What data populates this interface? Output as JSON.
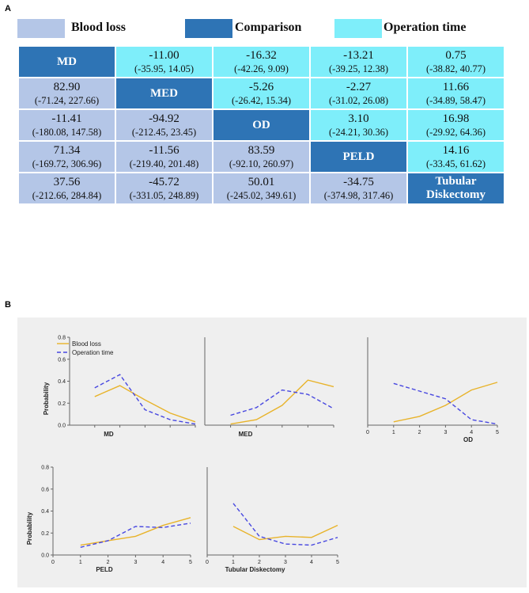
{
  "panel_a": {
    "label": "A",
    "legend": [
      {
        "label": "Blood loss",
        "color": "#b4c6e7"
      },
      {
        "label": "Comparison",
        "color": "#2e74b5"
      },
      {
        "label": "Operation time",
        "color": "#7eeefa"
      }
    ],
    "treatments": [
      "MD",
      "MED",
      "OD",
      "PELD",
      "Tubular Diskectomy"
    ],
    "diagonal_labels": [
      "MD",
      "MED",
      "OD",
      "PELD",
      "Tubular\nDiskectomy"
    ],
    "rows": [
      [
        {
          "type": "diag"
        },
        {
          "type": "op",
          "value": "-11.00",
          "ci": "(-35.95, 14.05)"
        },
        {
          "type": "op",
          "value": "-16.32",
          "ci": "(-42.26, 9.09)"
        },
        {
          "type": "op",
          "value": "-13.21",
          "ci": "(-39.25, 12.38)"
        },
        {
          "type": "op",
          "value": "0.75",
          "ci": "(-38.82, 40.77)"
        }
      ],
      [
        {
          "type": "blood",
          "value": "82.90",
          "ci": "(-71.24, 227.66)"
        },
        {
          "type": "diag"
        },
        {
          "type": "op",
          "value": "-5.26",
          "ci": "(-26.42, 15.34)"
        },
        {
          "type": "op",
          "value": "-2.27",
          "ci": "(-31.02, 26.08)"
        },
        {
          "type": "op",
          "value": "11.66",
          "ci": "(-34.89, 58.47)"
        }
      ],
      [
        {
          "type": "blood",
          "value": "-11.41",
          "ci": "(-180.08, 147.58)"
        },
        {
          "type": "blood",
          "value": "-94.92",
          "ci": "(-212.45, 23.45)"
        },
        {
          "type": "diag"
        },
        {
          "type": "op",
          "value": "3.10",
          "ci": "(-24.21, 30.36)"
        },
        {
          "type": "op",
          "value": "16.98",
          "ci": "(-29.92, 64.36)"
        }
      ],
      [
        {
          "type": "blood",
          "value": "71.34",
          "ci": "(-169.72, 306.96)"
        },
        {
          "type": "blood",
          "value": "-11.56",
          "ci": "(-219.40, 201.48)"
        },
        {
          "type": "blood",
          "value": "83.59",
          "ci": "(-92.10, 260.97)"
        },
        {
          "type": "diag"
        },
        {
          "type": "op",
          "value": "14.16",
          "ci": "(-33.45, 61.62)"
        }
      ],
      [
        {
          "type": "blood",
          "value": "37.56",
          "ci": "(-212.66, 284.84)"
        },
        {
          "type": "blood",
          "value": "-45.72",
          "ci": "(-331.05, 248.89)"
        },
        {
          "type": "blood",
          "value": "50.01",
          "ci": "(-245.02, 349.61)"
        },
        {
          "type": "blood",
          "value": "-34.75",
          "ci": "(-374.98, 317.46)"
        },
        {
          "type": "diag"
        }
      ]
    ]
  },
  "panel_b": {
    "label": "B",
    "legend": [
      "Blood loss",
      "Operation time"
    ],
    "colors": {
      "blood_loss": "#e8b32a",
      "operation_time": "#4747e0"
    }
  },
  "chart_data": [
    {
      "type": "line",
      "title": "MD",
      "xlabel": "MD",
      "ylabel": "Probability",
      "x": [
        1,
        2,
        3,
        4,
        5
      ],
      "xlim": [
        0,
        5
      ],
      "ylim": [
        0,
        0.8
      ],
      "yticks": [
        "0.0",
        "0.2",
        "0.4",
        "0.6",
        "0.8"
      ],
      "xticks": [],
      "series": [
        {
          "name": "Blood loss",
          "values": [
            0.26,
            0.36,
            0.23,
            0.11,
            0.03
          ]
        },
        {
          "name": "Operation time",
          "values": [
            0.34,
            0.46,
            0.14,
            0.05,
            0.01
          ]
        }
      ]
    },
    {
      "type": "line",
      "title": "MED",
      "xlabel": "MED",
      "ylabel": "",
      "x": [
        1,
        2,
        3,
        4,
        5
      ],
      "xlim": [
        0,
        5
      ],
      "ylim": [
        0,
        0.8
      ],
      "yticks": [],
      "xticks": [],
      "series": [
        {
          "name": "Blood loss",
          "values": [
            0.01,
            0.05,
            0.18,
            0.41,
            0.35
          ]
        },
        {
          "name": "Operation time",
          "values": [
            0.09,
            0.16,
            0.32,
            0.28,
            0.15
          ]
        }
      ]
    },
    {
      "type": "line",
      "title": "OD",
      "xlabel": "OD",
      "ylabel": "",
      "x": [
        1,
        2,
        3,
        4,
        5
      ],
      "xlim": [
        0,
        5
      ],
      "ylim": [
        0,
        0.8
      ],
      "yticks": [],
      "xticks": [
        "0",
        "1",
        "2",
        "3",
        "4",
        "5"
      ],
      "series": [
        {
          "name": "Blood loss",
          "values": [
            0.03,
            0.08,
            0.18,
            0.32,
            0.39
          ]
        },
        {
          "name": "Operation time",
          "values": [
            0.38,
            0.31,
            0.24,
            0.05,
            0.01
          ]
        }
      ]
    },
    {
      "type": "line",
      "title": "PELD",
      "xlabel": "PELD",
      "ylabel": "Probability",
      "x": [
        1,
        2,
        3,
        4,
        5
      ],
      "xlim": [
        0,
        5
      ],
      "ylim": [
        0,
        0.8
      ],
      "yticks": [
        "0.0",
        "0.2",
        "0.4",
        "0.6",
        "0.8"
      ],
      "xticks": [
        "0",
        "1",
        "2",
        "3",
        "4",
        "5"
      ],
      "series": [
        {
          "name": "Blood loss",
          "values": [
            0.09,
            0.13,
            0.17,
            0.27,
            0.34
          ]
        },
        {
          "name": "Operation time",
          "values": [
            0.07,
            0.13,
            0.26,
            0.25,
            0.29
          ]
        }
      ]
    },
    {
      "type": "line",
      "title": "Tubular Diskectomy",
      "xlabel": "Tubular Diskectomy",
      "ylabel": "",
      "x": [
        1,
        2,
        3,
        4,
        5
      ],
      "xlim": [
        0,
        5
      ],
      "ylim": [
        0,
        0.8
      ],
      "yticks": [],
      "xticks": [
        "0",
        "1",
        "2",
        "3",
        "4",
        "5"
      ],
      "series": [
        {
          "name": "Blood loss",
          "values": [
            0.26,
            0.14,
            0.17,
            0.16,
            0.27
          ]
        },
        {
          "name": "Operation time",
          "values": [
            0.47,
            0.17,
            0.1,
            0.09,
            0.16
          ]
        }
      ]
    }
  ]
}
